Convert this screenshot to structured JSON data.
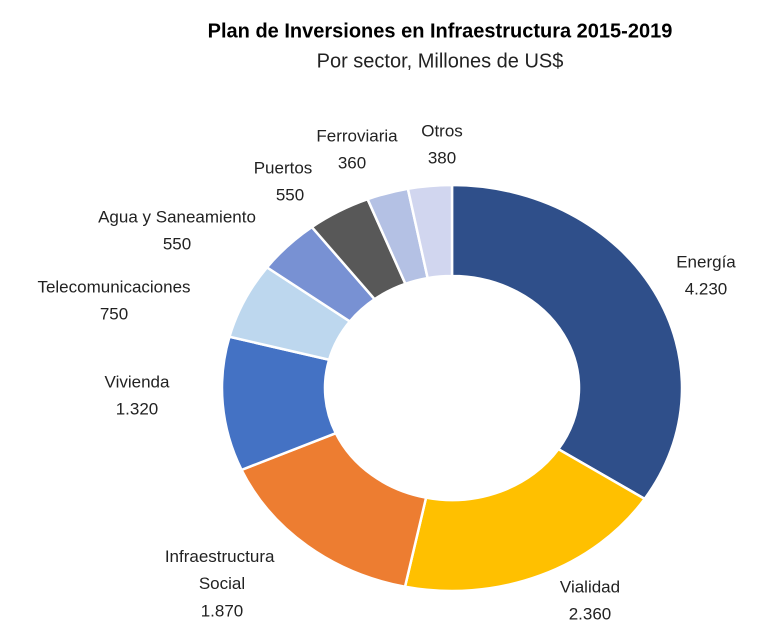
{
  "chart_data": {
    "type": "donut",
    "title": "Plan de Inversiones en Infraestructura 2015-2019",
    "subtitle": "Por sector, Millones de US$",
    "categories": [
      "Energía",
      "Vialidad",
      "Infraestructura Social",
      "Vivienda",
      "Telecomunicaciones",
      "Agua y Saneamiento",
      "Puertos",
      "Ferroviaria",
      "Otros"
    ],
    "values": [
      4230,
      2360,
      1870,
      1320,
      750,
      550,
      550,
      360,
      380
    ],
    "value_labels": [
      "4.230",
      "2.360",
      "1.870",
      "1.320",
      "750",
      "550",
      "550",
      "360",
      "380"
    ],
    "colors": [
      "#2f4f8a",
      "#ffc000",
      "#ed7d31",
      "#4472c4",
      "#bdd7ee",
      "#7891d3",
      "#585858",
      "#b4c1e4",
      "#d1d6ef"
    ]
  }
}
